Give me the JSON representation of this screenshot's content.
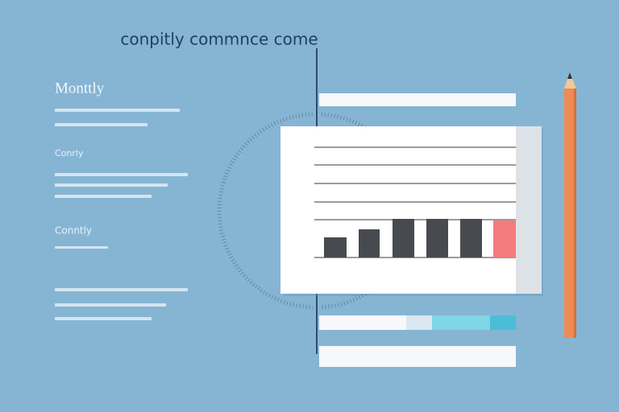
{
  "header": {
    "title": "conpitly commnce come"
  },
  "sidebar": {
    "heading": "Monttly",
    "label_1": "Conrly",
    "label_2": "Conntly"
  }
}
